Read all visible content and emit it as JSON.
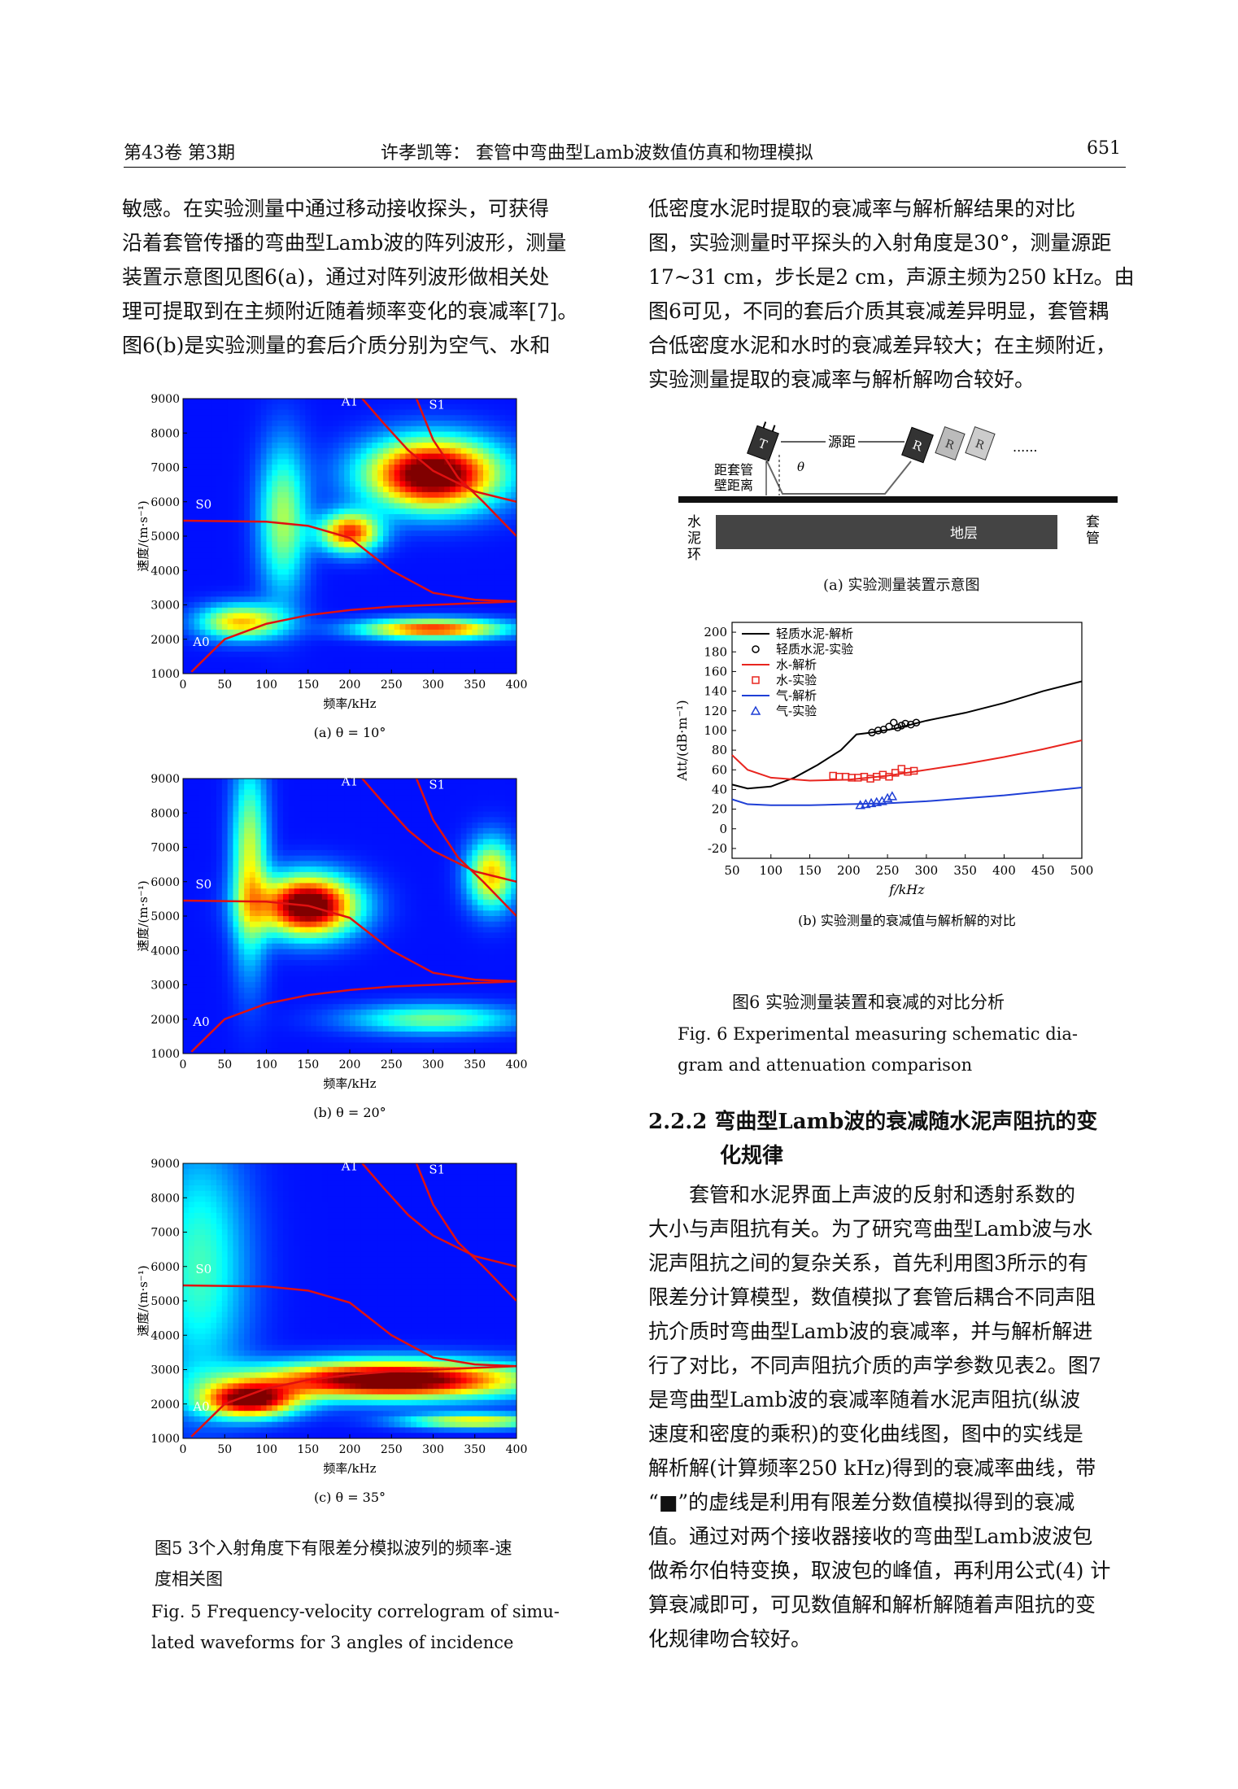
{
  "header": {
    "left": "第43卷 第3期",
    "center": "许孝凯等：  套管中弯曲型Lamb波数值仿真和物理模拟",
    "page_number": "651"
  },
  "left_column": {
    "intro_lines": [
      "敏感。在实验测量中通过移动接收探头，可获得",
      "沿着套管传播的弯曲型Lamb波的阵列波形，测量",
      "装置示意图见图6(a)，通过对阵列波形做相关处",
      "理可提取到在主频附近随着频率变化的衰减率[7]。",
      "图6(b)是实验测量的套后介质分别为空气、水和"
    ],
    "fig5_caption_zh": [
      "图5   3个入射角度下有限差分模拟波列的频率-速",
      "度相关图"
    ],
    "fig5_caption_en": [
      "Fig. 5   Frequency-velocity correlogram of simu-",
      "lated waveforms for 3 angles of incidence"
    ]
  },
  "right_column": {
    "intro_lines": [
      "低密度水泥时提取的衰减率与解析解结果的对比",
      "图，实验测量时平探头的入射角度是30°，测量源距",
      "17~31 cm，步长是2 cm，声源主频为250 kHz。由",
      "图6可见，不同的套后介质其衰减差异明显，套管耦",
      "合低密度水泥和水时的衰减差异较大；在主频附近，",
      "实验测量提取的衰减率与解析解吻合较好。"
    ],
    "fig6a": {
      "caption": "(a)  实验测量装置示意图",
      "labels": {
        "source_distance": "源距",
        "theta": "θ",
        "dots": "......",
        "wall_distance_1": "距套管",
        "wall_distance_2": "壁距离",
        "formation": "地层",
        "cement": [
          "水",
          "泥",
          "环"
        ],
        "casing": [
          "套",
          "管"
        ],
        "transmitter": "T",
        "receiver": "R"
      }
    },
    "fig6_caption_zh": "图6   实验测量装置和衰减的对比分析",
    "fig6_caption_en": [
      "Fig. 6   Experimental measuring schematic dia-",
      "gram and attenuation comparison"
    ],
    "section_title": [
      "2.2.2   弯曲型Lamb波的衰减随水泥声阻抗的变",
      "化规律"
    ],
    "section_lines": [
      "套管和水泥界面上声波的反射和透射系数的",
      "大小与声阻抗有关。为了研究弯曲型Lamb波与水",
      "泥声阻抗之间的复杂关系，首先利用图3所示的有",
      "限差分计算模型，数值模拟了套管后耦合不同声阻",
      "抗介质时弯曲型Lamb波的衰减率，并与解析解进",
      "行了对比，不同声阻抗介质的声学参数见表2。图7",
      "是弯曲型Lamb波的衰减率随着水泥声阻抗(纵波",
      "速度和密度的乘积)的变化曲线图，图中的实线是",
      "解析解(计算频率250 kHz)得到的衰减率曲线，带",
      "“■”的虚线是利用有限差分数值模拟得到的衰减",
      "值。通过对两个接收器接收的弯曲型Lamb波波包",
      "做希尔伯特变换，取波包的峰值，再利用公式(4) 计",
      "算衰减即可，可见数值解和解析解随着声阻抗的变",
      "化规律吻合较好。"
    ]
  },
  "chart_data": [
    {
      "type": "heatmap",
      "panel": "fig5a",
      "caption": "(a) θ = 10°",
      "xlabel": "频率/kHz",
      "ylabel": "速度/(m·s⁻¹)",
      "xlim": [
        0,
        400
      ],
      "ylim": [
        1000,
        9000
      ],
      "xticks": [
        0,
        50,
        100,
        150,
        200,
        250,
        300,
        350,
        400
      ],
      "yticks": [
        1000,
        2000,
        3000,
        4000,
        5000,
        6000,
        7000,
        8000,
        9000
      ],
      "mode_labels": [
        "A1",
        "S1",
        "S0",
        "A0"
      ],
      "modes": {
        "S0": {
          "x": [
            0,
            100,
            150,
            200,
            250,
            300,
            350,
            400
          ],
          "y": [
            5450,
            5420,
            5300,
            4950,
            4000,
            3350,
            3150,
            3100
          ]
        },
        "A0": {
          "x": [
            10,
            50,
            100,
            150,
            200,
            250,
            300,
            350,
            400
          ],
          "y": [
            1050,
            2000,
            2450,
            2700,
            2850,
            2950,
            3000,
            3050,
            3100
          ]
        },
        "A1": {
          "x": [
            215,
            240,
            270,
            300,
            350,
            400
          ],
          "y": [
            9000,
            8300,
            7500,
            6900,
            6300,
            6000
          ]
        },
        "S1": {
          "x": [
            280,
            300,
            330,
            360,
            400
          ],
          "y": [
            9000,
            7800,
            6700,
            6000,
            5000
          ]
        }
      },
      "hotspots": [
        {
          "x": 300,
          "y": 6800,
          "level": 1.0,
          "sx": 55,
          "sy": 700
        },
        {
          "x": 200,
          "y": 5100,
          "level": 0.7,
          "sx": 25,
          "sy": 400
        },
        {
          "x": 120,
          "y": 5500,
          "level": 0.4,
          "sx": 20,
          "sy": 1500
        },
        {
          "x": 70,
          "y": 2500,
          "level": 0.55,
          "sx": 35,
          "sy": 350
        },
        {
          "x": 300,
          "y": 2300,
          "level": 0.7,
          "sx": 60,
          "sy": 200
        }
      ]
    },
    {
      "type": "heatmap",
      "panel": "fig5b",
      "caption": "(b) θ = 20°",
      "xlabel": "频率/kHz",
      "ylabel": "速度/(m·s⁻¹)",
      "xlim": [
        0,
        400
      ],
      "ylim": [
        1000,
        9000
      ],
      "xticks": [
        0,
        50,
        100,
        150,
        200,
        250,
        300,
        350,
        400
      ],
      "yticks": [
        1000,
        2000,
        3000,
        4000,
        5000,
        6000,
        7000,
        8000,
        9000
      ],
      "mode_labels": [
        "A1",
        "S1",
        "S0",
        "A0"
      ],
      "modes": {
        "S0": {
          "x": [
            0,
            100,
            150,
            200,
            250,
            300,
            350,
            400
          ],
          "y": [
            5450,
            5420,
            5300,
            4950,
            4000,
            3350,
            3150,
            3100
          ]
        },
        "A0": {
          "x": [
            10,
            50,
            100,
            150,
            200,
            250,
            300,
            350,
            400
          ],
          "y": [
            1050,
            2000,
            2450,
            2700,
            2850,
            2950,
            3000,
            3050,
            3100
          ]
        },
        "A1": {
          "x": [
            215,
            240,
            270,
            300,
            350,
            400
          ],
          "y": [
            9000,
            8300,
            7500,
            6900,
            6300,
            6000
          ]
        },
        "S1": {
          "x": [
            280,
            300,
            330,
            360,
            400
          ],
          "y": [
            9000,
            7800,
            6700,
            6000,
            5000
          ]
        }
      },
      "hotspots": [
        {
          "x": 150,
          "y": 5300,
          "level": 1.0,
          "sx": 40,
          "sy": 600
        },
        {
          "x": 80,
          "y": 6500,
          "level": 0.45,
          "sx": 15,
          "sy": 2000
        },
        {
          "x": 370,
          "y": 6200,
          "level": 0.55,
          "sx": 20,
          "sy": 700
        },
        {
          "x": 300,
          "y": 2000,
          "level": 0.35,
          "sx": 70,
          "sy": 300
        }
      ]
    },
    {
      "type": "heatmap",
      "panel": "fig5c",
      "caption": "(c) θ = 35°",
      "xlabel": "频率/kHz",
      "ylabel": "速度/(m·s⁻¹)",
      "xlim": [
        0,
        400
      ],
      "ylim": [
        1000,
        9000
      ],
      "xticks": [
        0,
        50,
        100,
        150,
        200,
        250,
        300,
        350,
        400
      ],
      "yticks": [
        1000,
        2000,
        3000,
        4000,
        5000,
        6000,
        7000,
        8000,
        9000
      ],
      "mode_labels": [
        "A1",
        "S1",
        "S0",
        "A0"
      ],
      "modes": {
        "S0": {
          "x": [
            0,
            100,
            150,
            200,
            250,
            300,
            350,
            400
          ],
          "y": [
            5450,
            5420,
            5300,
            4950,
            4000,
            3350,
            3150,
            3100
          ]
        },
        "A0": {
          "x": [
            10,
            50,
            100,
            150,
            200,
            250,
            300,
            350,
            400
          ],
          "y": [
            1050,
            2000,
            2450,
            2700,
            2850,
            2950,
            3000,
            3050,
            3100
          ]
        },
        "A1": {
          "x": [
            215,
            240,
            270,
            300,
            350,
            400
          ],
          "y": [
            9000,
            8300,
            7500,
            6900,
            6300,
            6000
          ]
        },
        "S1": {
          "x": [
            280,
            300,
            330,
            360,
            400
          ],
          "y": [
            9000,
            7800,
            6700,
            6000,
            5000
          ]
        }
      },
      "hotspots": [
        {
          "x": 250,
          "y": 2700,
          "level": 1.0,
          "sx": 110,
          "sy": 380
        },
        {
          "x": 80,
          "y": 2100,
          "level": 0.85,
          "sx": 40,
          "sy": 350
        },
        {
          "x": 350,
          "y": 1500,
          "level": 0.5,
          "sx": 60,
          "sy": 150
        },
        {
          "x": 20,
          "y": 6000,
          "level": 0.3,
          "sx": 40,
          "sy": 2500
        }
      ]
    },
    {
      "type": "line",
      "panel": "fig6b",
      "caption": "(b)  实验测量的衰减值与解析解的对比",
      "xlabel": "f/kHz",
      "ylabel": "Att/(dB·m⁻¹)",
      "xlim": [
        50,
        500
      ],
      "ylim": [
        -30,
        210
      ],
      "xticks": [
        50,
        100,
        150,
        200,
        250,
        300,
        350,
        400,
        450,
        500
      ],
      "yticks": [
        -20,
        0,
        20,
        40,
        60,
        80,
        100,
        120,
        140,
        160,
        180,
        200
      ],
      "legend_position": "top-left",
      "series": [
        {
          "name": "轻质水泥-解析",
          "kind": "line",
          "color": "#000000",
          "x": [
            50,
            70,
            100,
            130,
            160,
            190,
            210,
            230,
            260,
            300,
            350,
            400,
            450,
            500
          ],
          "y": [
            45,
            41,
            43,
            52,
            65,
            80,
            96,
            98,
            102,
            110,
            118,
            128,
            140,
            150
          ]
        },
        {
          "name": "轻质水泥-实验",
          "kind": "marker-circle",
          "color": "#000000",
          "x": [
            230,
            238,
            245,
            252,
            258,
            263,
            268,
            273,
            280,
            287
          ],
          "y": [
            98,
            100,
            101,
            104,
            108,
            103,
            105,
            107,
            106,
            108
          ]
        },
        {
          "name": "水-解析",
          "kind": "line",
          "color": "#e8251f",
          "x": [
            50,
            70,
            100,
            150,
            200,
            250,
            300,
            350,
            400,
            450,
            500
          ],
          "y": [
            75,
            60,
            52,
            49,
            50,
            54,
            60,
            66,
            73,
            81,
            90
          ]
        },
        {
          "name": "水-实验",
          "kind": "marker-square",
          "color": "#e8251f",
          "x": [
            180,
            188,
            196,
            204,
            212,
            220,
            228,
            236,
            244,
            252,
            260,
            268,
            276,
            284
          ],
          "y": [
            54,
            53,
            53,
            52,
            52,
            53,
            51,
            53,
            55,
            53,
            57,
            61,
            58,
            59
          ]
        },
        {
          "name": "气-解析",
          "kind": "line",
          "color": "#1f3fd6",
          "x": [
            50,
            70,
            100,
            150,
            200,
            250,
            300,
            350,
            400,
            450,
            500
          ],
          "y": [
            30,
            25,
            24,
            24,
            25,
            26,
            28,
            31,
            34,
            38,
            42
          ]
        },
        {
          "name": "气-实验",
          "kind": "marker-triangle",
          "color": "#1f3fd6",
          "x": [
            215,
            222,
            229,
            236,
            243,
            250,
            256
          ],
          "y": [
            24,
            25,
            26,
            27,
            28,
            31,
            33
          ]
        }
      ]
    }
  ]
}
